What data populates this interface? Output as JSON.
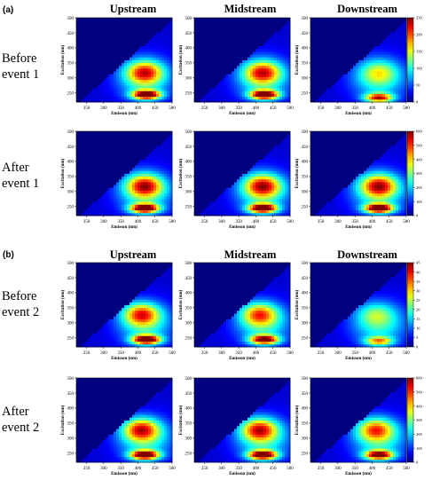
{
  "figure": {
    "panel_a_label": "(a)",
    "panel_b_label": "(b)",
    "col_titles": [
      "Upstream",
      "Midstream",
      "Downstream"
    ],
    "row_titles_a": [
      [
        "Before",
        "event 1"
      ],
      [
        "After",
        "event 1"
      ]
    ],
    "row_titles_b": [
      [
        "Before",
        "event 2"
      ],
      [
        "After",
        "event 2"
      ]
    ]
  },
  "chart_data": {
    "type": "heatmap",
    "description_axes": {
      "xlabel": "Emisson (nm)",
      "ylabel": "Excitation (nm)",
      "xticks": [
        250,
        300,
        350,
        400,
        450,
        500
      ],
      "yticks": [
        250,
        300,
        350,
        400,
        450,
        500
      ],
      "xlim": [
        220,
        500
      ],
      "ylim": [
        220,
        500
      ]
    },
    "colormap": "jet",
    "colorbars": [
      {
        "row": "a1",
        "ticks": [
          0,
          50,
          100,
          150,
          200,
          250
        ]
      },
      {
        "row": "a2",
        "ticks": [
          0,
          100,
          200,
          300,
          400,
          500,
          600
        ]
      },
      {
        "row": "b1",
        "ticks": [
          0,
          5,
          10,
          15,
          20,
          25,
          30,
          35,
          40,
          45
        ]
      },
      {
        "row": "b2",
        "ticks": [
          0,
          100,
          200,
          300,
          400,
          500,
          600
        ]
      }
    ],
    "panels": [
      {
        "row": "a1",
        "site": "Upstream",
        "peak_C": {
          "ex": 320,
          "em": 420,
          "rel": 0.55
        },
        "peak_A": {
          "ex": 245,
          "em": 425,
          "rel": 1.0
        }
      },
      {
        "row": "a1",
        "site": "Midstream",
        "peak_C": {
          "ex": 320,
          "em": 420,
          "rel": 0.55
        },
        "peak_A": {
          "ex": 245,
          "em": 425,
          "rel": 1.0
        }
      },
      {
        "row": "a1",
        "site": "Downstream",
        "peak_C": {
          "ex": 320,
          "em": 420,
          "rel": 0.25
        },
        "peak_A": {
          "ex": 235,
          "em": 420,
          "rel": 0.75
        }
      },
      {
        "row": "a2",
        "site": "Upstream",
        "peak_C": {
          "ex": 320,
          "em": 420,
          "rel": 0.6
        },
        "peak_A": {
          "ex": 245,
          "em": 420,
          "rel": 1.0
        }
      },
      {
        "row": "a2",
        "site": "Midstream",
        "peak_C": {
          "ex": 320,
          "em": 420,
          "rel": 0.6
        },
        "peak_A": {
          "ex": 245,
          "em": 420,
          "rel": 1.0
        }
      },
      {
        "row": "a2",
        "site": "Downstream",
        "peak_C": {
          "ex": 320,
          "em": 420,
          "rel": 0.6
        },
        "peak_A": {
          "ex": 245,
          "em": 420,
          "rel": 1.0
        }
      },
      {
        "row": "b1",
        "site": "Upstream",
        "peak_C": {
          "ex": 330,
          "em": 410,
          "rel": 0.55
        },
        "peak_A": {
          "ex": 245,
          "em": 425,
          "rel": 1.0
        }
      },
      {
        "row": "b1",
        "site": "Midstream",
        "peak_C": {
          "ex": 330,
          "em": 410,
          "rel": 0.5
        },
        "peak_A": {
          "ex": 245,
          "em": 425,
          "rel": 0.9
        }
      },
      {
        "row": "b1",
        "site": "Downstream",
        "peak_C": {
          "ex": 330,
          "em": 410,
          "rel": 0.2
        },
        "peak_A": {
          "ex": 240,
          "em": 420,
          "rel": 0.55
        }
      },
      {
        "row": "b2",
        "site": "Upstream",
        "peak_C": {
          "ex": 330,
          "em": 410,
          "rel": 0.6
        },
        "peak_A": {
          "ex": 245,
          "em": 420,
          "rel": 1.0
        }
      },
      {
        "row": "b2",
        "site": "Midstream",
        "peak_C": {
          "ex": 330,
          "em": 410,
          "rel": 0.6
        },
        "peak_A": {
          "ex": 245,
          "em": 420,
          "rel": 1.0
        }
      },
      {
        "row": "b2",
        "site": "Downstream",
        "peak_C": {
          "ex": 330,
          "em": 410,
          "rel": 0.5
        },
        "peak_A": {
          "ex": 245,
          "em": 420,
          "rel": 0.9
        }
      }
    ]
  }
}
